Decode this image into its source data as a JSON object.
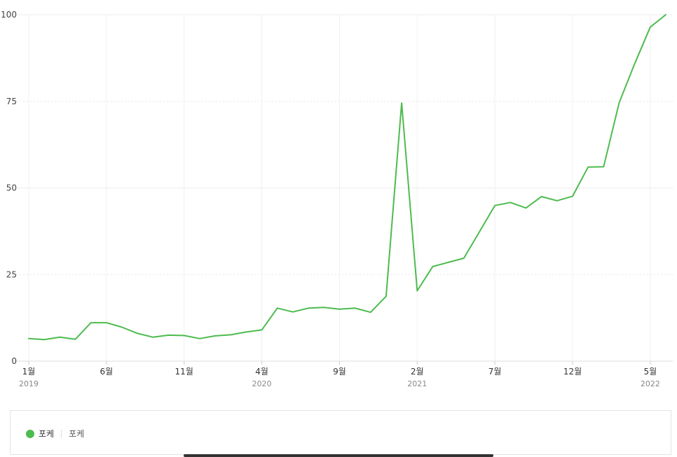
{
  "chart_data": {
    "type": "line",
    "x": [
      "2019-01",
      "2019-02",
      "2019-03",
      "2019-04",
      "2019-05",
      "2019-06",
      "2019-07",
      "2019-08",
      "2019-09",
      "2019-10",
      "2019-11",
      "2019-12",
      "2020-01",
      "2020-02",
      "2020-03",
      "2020-04",
      "2020-05",
      "2020-06",
      "2020-07",
      "2020-08",
      "2020-09",
      "2020-10",
      "2020-11",
      "2020-12",
      "2021-01",
      "2021-02",
      "2021-03",
      "2021-04",
      "2021-05",
      "2021-06",
      "2021-07",
      "2021-08",
      "2021-09",
      "2021-10",
      "2021-11",
      "2021-12",
      "2022-01",
      "2022-02",
      "2022-03",
      "2022-04",
      "2022-05",
      "2022-06"
    ],
    "series": [
      {
        "name": "포케",
        "color": "#4dbb4e",
        "values": [
          6.5,
          6.2,
          6.9,
          6.3,
          11.1,
          11.1,
          9.8,
          8.0,
          6.9,
          7.5,
          7.4,
          6.5,
          7.3,
          7.6,
          8.4,
          9.0,
          15.3,
          14.2,
          15.3,
          15.5,
          15.0,
          15.3,
          14.1,
          18.7,
          74.5,
          20.3,
          27.3,
          28.5,
          29.7,
          37.3,
          44.9,
          45.8,
          44.2,
          47.5,
          46.3,
          47.6,
          56.0,
          56.1,
          74.6,
          85.9,
          96.4,
          100
        ]
      }
    ],
    "ylim": [
      0,
      100
    ],
    "y_ticks": [
      "0",
      "25",
      "50",
      "75",
      "100"
    ],
    "x_ticks": [
      {
        "x": "2019-01",
        "month": "1월",
        "year": "2019"
      },
      {
        "x": "2019-06",
        "month": "6월",
        "year": ""
      },
      {
        "x": "2019-11",
        "month": "11월",
        "year": ""
      },
      {
        "x": "2020-04",
        "month": "4월",
        "year": "2020"
      },
      {
        "x": "2020-09",
        "month": "9월",
        "year": ""
      },
      {
        "x": "2021-02",
        "month": "2월",
        "year": "2021"
      },
      {
        "x": "2021-07",
        "month": "7월",
        "year": ""
      },
      {
        "x": "2021-12",
        "month": "12월",
        "year": ""
      },
      {
        "x": "2022-05",
        "month": "5월",
        "year": "2022"
      }
    ],
    "grid": true,
    "title": "",
    "xlabel": "",
    "ylabel": ""
  },
  "legend": {
    "label": "포케",
    "sublabel": "포케",
    "color": "#4dbb4e"
  }
}
